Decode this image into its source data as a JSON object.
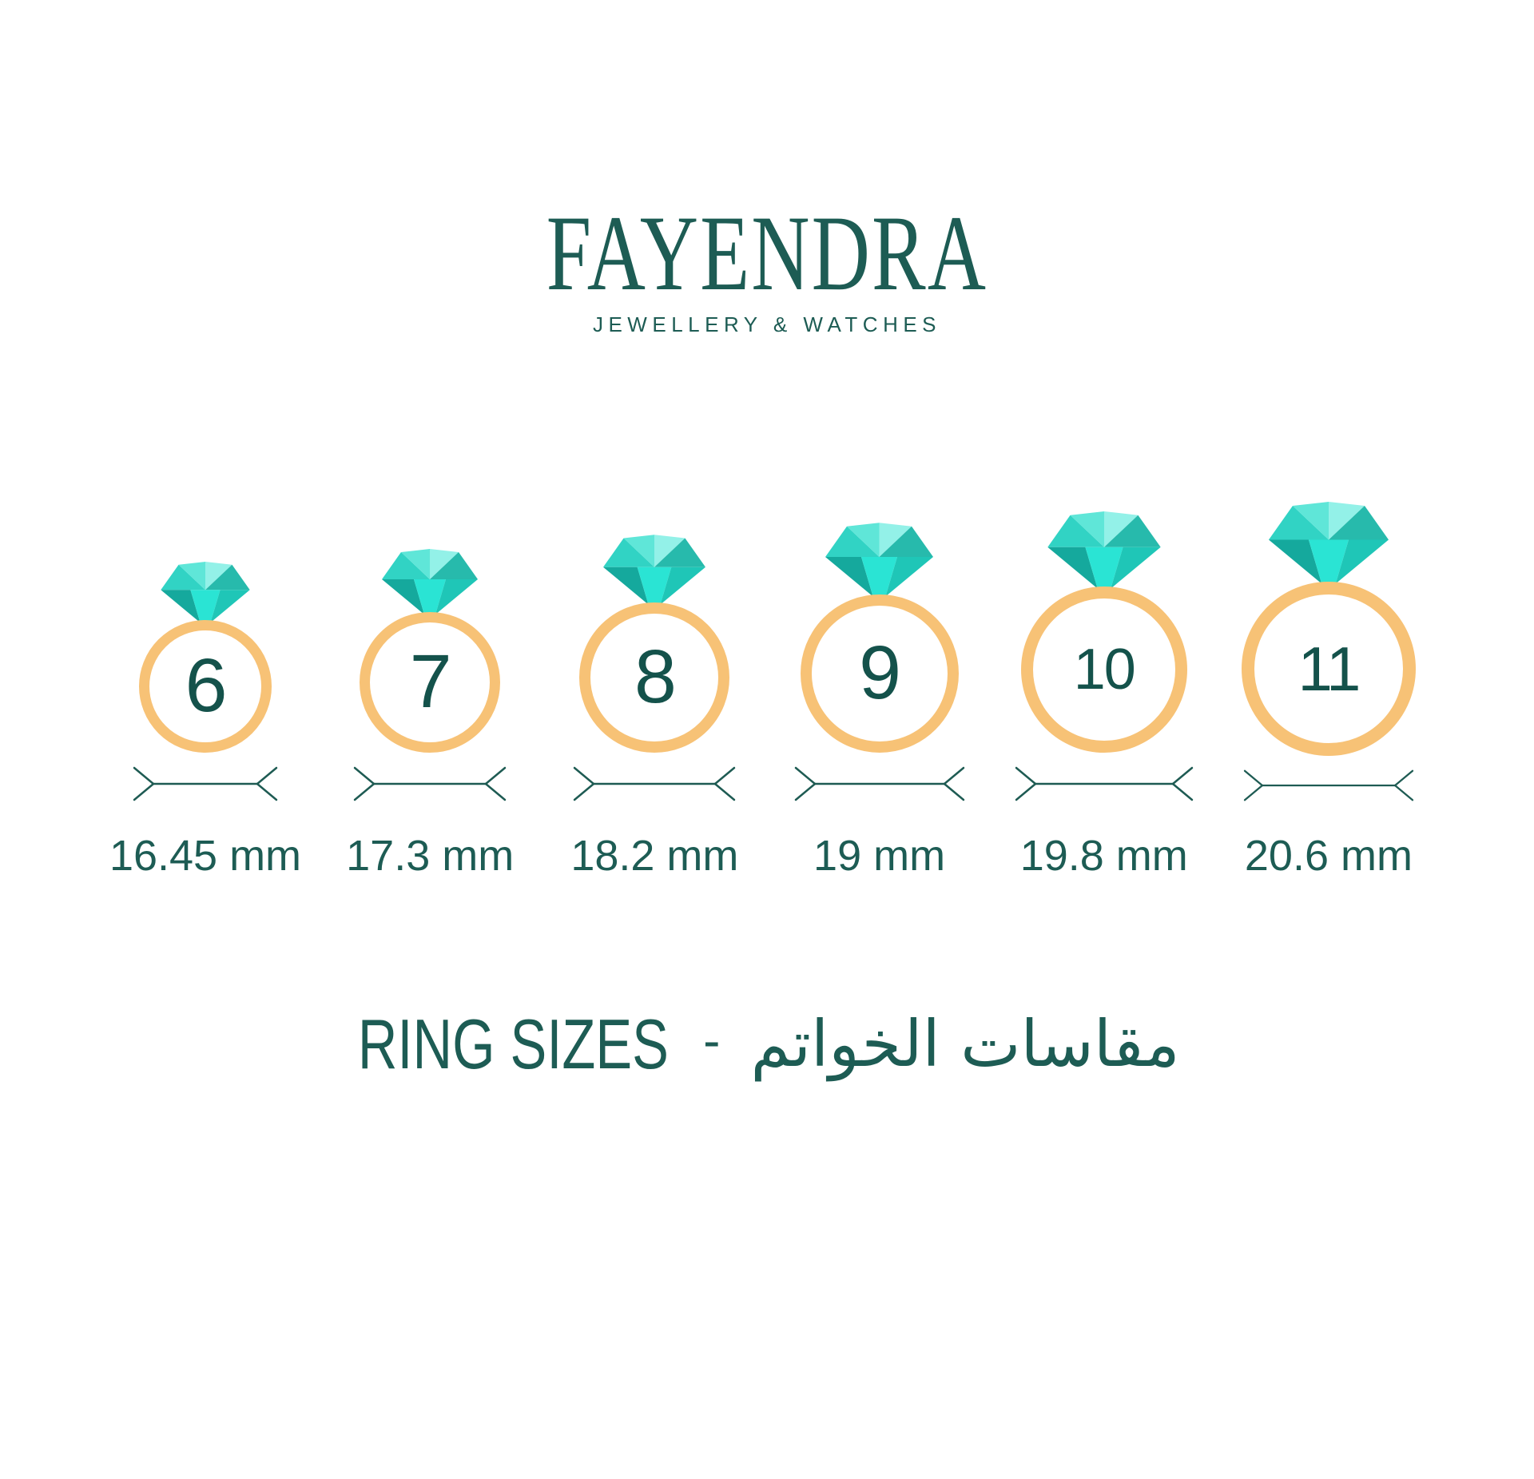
{
  "brand": {
    "name": "FAYENDRA",
    "tagline": "JEWELLERY & WATCHES"
  },
  "title": {
    "en": "RING SIZES",
    "separator": "-",
    "ar": "مقاسات الخواتم"
  },
  "rings": [
    {
      "size": "6",
      "diameter": "16.45 mm"
    },
    {
      "size": "7",
      "diameter": "17.3 mm"
    },
    {
      "size": "8",
      "diameter": "18.2 mm"
    },
    {
      "size": "9",
      "diameter": "19 mm"
    },
    {
      "size": "10",
      "diameter": "19.8 mm"
    },
    {
      "size": "11",
      "diameter": "20.6 mm"
    }
  ],
  "colors": {
    "background": "#FFFFFF",
    "teal_text": "#1D5C54",
    "number": "#14524B",
    "line": "#1E5B53",
    "gold_band": "#F7C276",
    "diamond": {
      "top_left": "#31D3C4",
      "top_center": "#5FE6D8",
      "top_center_light": "#93F1E8",
      "top_right": "#27BAAC",
      "bottom_left": "#15A99D",
      "bottom_center": "#2AE4D4",
      "bottom_right": "#1FC6B7"
    }
  }
}
